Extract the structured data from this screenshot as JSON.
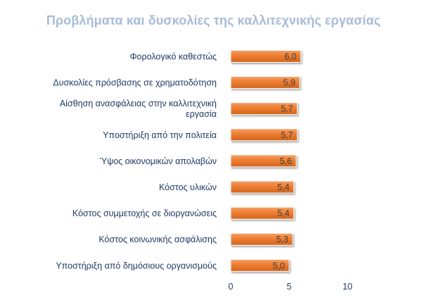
{
  "chart_data": {
    "type": "bar",
    "orientation": "horizontal",
    "title": "Προβλήματα και δυσκολίες της καλλιτεχνικής εργασίας",
    "xlabel": "",
    "ylabel": "",
    "categories": [
      [
        "Φορολογικό καθεστώς"
      ],
      [
        "Δυσκολίες πρόσβασης σε χρηματοδότηση"
      ],
      [
        "Αίσθηση ανασφάλειας στην καλλιτεχνική",
        "εργασία"
      ],
      [
        "Υποστήριξη από την πολιτεία"
      ],
      [
        "Ύψος οικονομικών απολαβών"
      ],
      [
        "Κόστος υλικών"
      ],
      [
        "Κόστος συμμετοχής σε διοργανώσεις"
      ],
      [
        "Κόστος κοινωνικής ασφάλισης"
      ],
      [
        "Υποστήριξη από δημόσιους οργανισμούς"
      ]
    ],
    "values": [
      6.0,
      5.9,
      5.7,
      5.7,
      5.6,
      5.4,
      5.4,
      5.3,
      5.0
    ],
    "value_labels": [
      "6,0",
      "5,9",
      "5,7",
      "5,7",
      "5,6",
      "5,4",
      "5,4",
      "5,3",
      "5,0"
    ],
    "xlim": [
      0,
      10
    ],
    "x_ticks": [
      0,
      5,
      10
    ],
    "x_tick_labels": [
      "0",
      "5",
      "10"
    ],
    "grid": false,
    "legend": "none",
    "bar_color": "#ed7d31",
    "bar_edge_color": "#ffffff",
    "title_color": "#a7bcd8",
    "label_color": "#1f3a64"
  }
}
